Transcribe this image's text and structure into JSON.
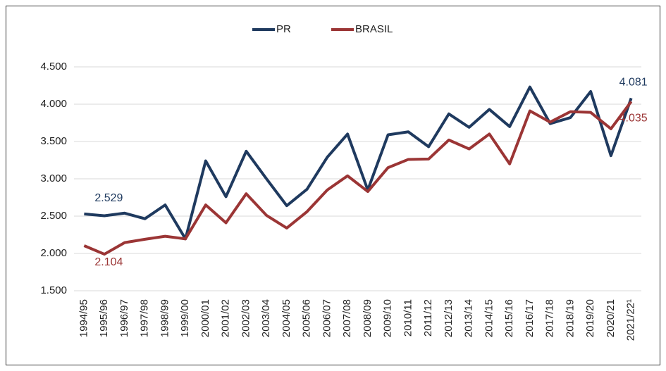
{
  "chart_data": {
    "type": "line",
    "categories": [
      "1994/95",
      "1995/96",
      "1996/97",
      "1997/98",
      "1998/99",
      "1999/00",
      "2000/01",
      "2001/02",
      "2002/03",
      "2003/04",
      "2004/05",
      "2005/06",
      "2006/07",
      "2007/08",
      "2008/09",
      "2009/10",
      "2010/11",
      "2011/12",
      "2012/13",
      "2013/14",
      "2014/15",
      "2015/16",
      "2016/17",
      "2017/18",
      "2018/19",
      "2019/20",
      "2020/21",
      "2021/22¹"
    ],
    "series": [
      {
        "name": "PR",
        "color": "#1f3a5f",
        "values": [
          2529,
          2505,
          2540,
          2465,
          2650,
          2195,
          3240,
          2760,
          3370,
          3000,
          2640,
          2860,
          3290,
          3600,
          2850,
          3590,
          3630,
          3430,
          3870,
          3690,
          3930,
          3700,
          4230,
          3740,
          3820,
          4170,
          3310,
          4081
        ],
        "value_labels": [
          "2.529",
          null,
          null,
          null,
          null,
          null,
          null,
          null,
          null,
          null,
          null,
          null,
          null,
          null,
          null,
          null,
          null,
          null,
          null,
          null,
          null,
          null,
          null,
          null,
          null,
          null,
          null,
          "4.081"
        ]
      },
      {
        "name": "BRASIL",
        "color": "#9b3535",
        "values": [
          2104,
          1990,
          2145,
          2190,
          2230,
          2195,
          2650,
          2410,
          2800,
          2510,
          2340,
          2560,
          2850,
          3040,
          2830,
          3150,
          3260,
          3265,
          3520,
          3400,
          3600,
          3200,
          3910,
          3760,
          3900,
          3890,
          3670,
          4035
        ],
        "value_labels": [
          "2.104",
          null,
          null,
          null,
          null,
          null,
          null,
          null,
          null,
          null,
          null,
          null,
          null,
          null,
          null,
          null,
          null,
          null,
          null,
          null,
          null,
          null,
          null,
          null,
          null,
          null,
          null,
          "4.035"
        ]
      }
    ],
    "ylim": [
      1500,
      4500
    ],
    "yticks": [
      {
        "value": 1500,
        "label": "1.500"
      },
      {
        "value": 2000,
        "label": "2.000"
      },
      {
        "value": 2500,
        "label": "2.500"
      },
      {
        "value": 3000,
        "label": "3.000"
      },
      {
        "value": 3500,
        "label": "3.500"
      },
      {
        "value": 4000,
        "label": "4.000"
      },
      {
        "value": 4500,
        "label": "4.500"
      }
    ],
    "grid": true,
    "legend": "top"
  }
}
